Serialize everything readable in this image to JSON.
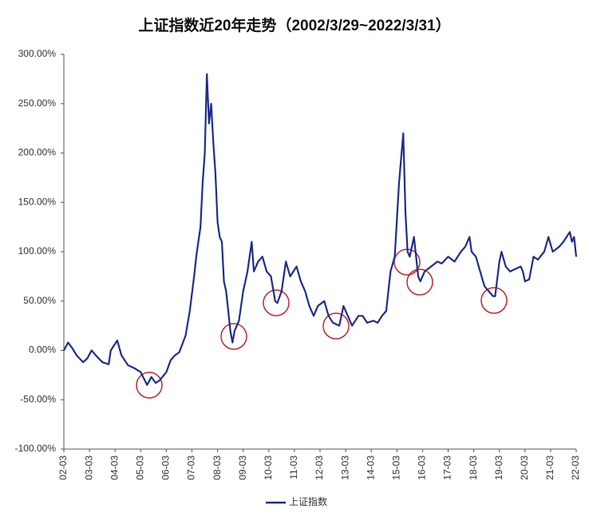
{
  "chart_data": {
    "type": "line",
    "title": "上证指数近20年走势（2002/3/29~2022/3/31）",
    "x": [
      "02-03",
      "02-05",
      "02-07",
      "02-09",
      "02-12",
      "03-02",
      "03-04",
      "03-06",
      "03-09",
      "03-12",
      "04-01",
      "04-04",
      "04-06",
      "04-09",
      "04-12",
      "05-03",
      "05-06",
      "05-08",
      "05-10",
      "05-12",
      "06-03",
      "06-05",
      "06-07",
      "06-09",
      "06-12",
      "07-02",
      "07-04",
      "07-05",
      "07-06",
      "07-07",
      "07-08",
      "07-09",
      "07-10",
      "07-11",
      "07-12",
      "08-01",
      "08-02",
      "08-03",
      "08-04",
      "08-05",
      "08-06",
      "08-07",
      "08-08",
      "08-09",
      "08-10",
      "08-11",
      "09-01",
      "09-03",
      "09-05",
      "09-07",
      "09-08",
      "09-10",
      "09-12",
      "10-02",
      "10-04",
      "10-06",
      "10-07",
      "10-09",
      "10-11",
      "11-01",
      "11-04",
      "11-06",
      "11-08",
      "11-10",
      "11-12",
      "12-02",
      "12-05",
      "12-07",
      "12-09",
      "12-12",
      "13-02",
      "13-04",
      "13-06",
      "13-09",
      "13-11",
      "14-01",
      "14-04",
      "14-06",
      "14-08",
      "14-10",
      "14-12",
      "15-02",
      "15-04",
      "15-06",
      "15-07",
      "15-08",
      "15-09",
      "15-11",
      "16-01",
      "16-02",
      "16-04",
      "16-07",
      "16-10",
      "16-12",
      "17-03",
      "17-06",
      "17-09",
      "17-11",
      "18-01",
      "18-02",
      "18-04",
      "18-06",
      "18-08",
      "18-10",
      "18-12",
      "19-01",
      "19-03",
      "19-04",
      "19-06",
      "19-08",
      "19-10",
      "20-01",
      "20-02",
      "20-03",
      "20-05",
      "20-07",
      "20-09",
      "20-12",
      "21-02",
      "21-04",
      "21-07",
      "21-09",
      "21-12",
      "22-01",
      "22-02",
      "22-03"
    ],
    "series": [
      {
        "name": "上证指数",
        "color": "#1f2d8c",
        "values": [
          0,
          8,
          2,
          -5,
          -12,
          -8,
          0,
          -5,
          -12,
          -14,
          0,
          10,
          -5,
          -15,
          -18,
          -22,
          -35,
          -27,
          -33,
          -30,
          -22,
          -10,
          -5,
          -2,
          15,
          40,
          75,
          95,
          110,
          125,
          170,
          200,
          280,
          230,
          250,
          210,
          180,
          130,
          115,
          110,
          70,
          60,
          40,
          20,
          8,
          20,
          30,
          60,
          80,
          110,
          80,
          90,
          95,
          80,
          75,
          50,
          48,
          60,
          90,
          75,
          85,
          70,
          60,
          45,
          35,
          45,
          50,
          35,
          28,
          25,
          45,
          35,
          25,
          35,
          35,
          28,
          30,
          28,
          35,
          40,
          80,
          95,
          170,
          220,
          140,
          100,
          95,
          115,
          75,
          70,
          80,
          85,
          90,
          88,
          95,
          90,
          100,
          105,
          115,
          100,
          95,
          80,
          65,
          60,
          55,
          55,
          90,
          100,
          85,
          80,
          82,
          85,
          80,
          70,
          72,
          95,
          92,
          100,
          115,
          100,
          105,
          110,
          120,
          110,
          115,
          95
        ]
      }
    ],
    "xticks": [
      "02-03",
      "03-03",
      "04-03",
      "05-03",
      "06-03",
      "07-03",
      "08-03",
      "09-03",
      "10-03",
      "11-03",
      "12-03",
      "13-03",
      "14-03",
      "15-03",
      "16-03",
      "17-03",
      "18-03",
      "19-03",
      "20-03",
      "21-03",
      "22-03"
    ],
    "ylim": [
      -100,
      300
    ],
    "yticks": [
      {
        "value": -100,
        "label": "-100.00%"
      },
      {
        "value": -50,
        "label": "-50.00%"
      },
      {
        "value": 0,
        "label": "0.00%"
      },
      {
        "value": 50,
        "label": "50.00%"
      },
      {
        "value": 100,
        "label": "100.00%"
      },
      {
        "value": 150,
        "label": "150.00%"
      },
      {
        "value": 200,
        "label": "200.00%"
      },
      {
        "value": 250,
        "label": "250.00%"
      },
      {
        "value": 300,
        "label": "300.00%"
      }
    ]
  }
}
